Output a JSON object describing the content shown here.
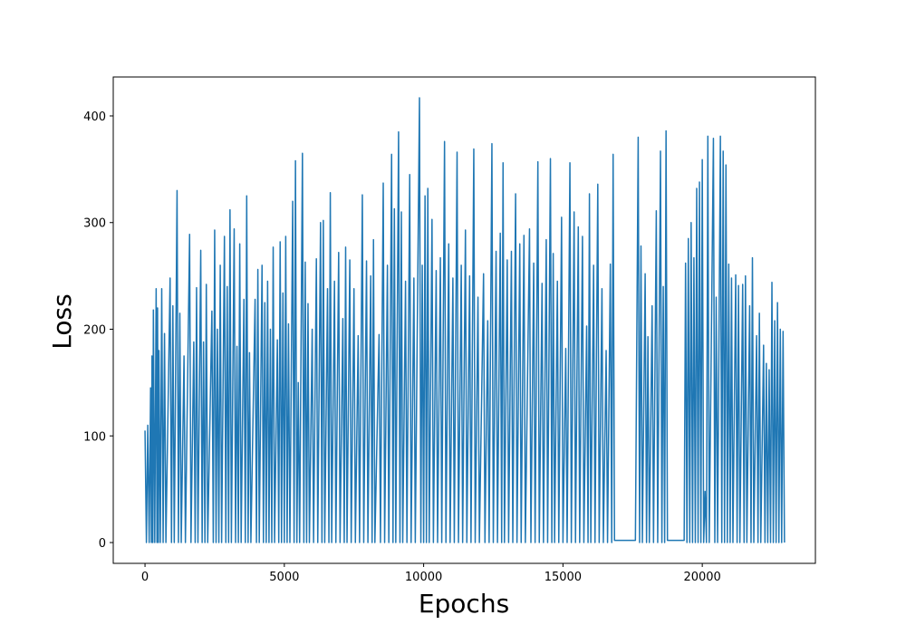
{
  "chart_data": {
    "type": "line",
    "xlabel": "Epochs",
    "ylabel": "Loss",
    "x": [
      0,
      50,
      100,
      150,
      200,
      230,
      250,
      280,
      300,
      350,
      400,
      430,
      450,
      480,
      500,
      550,
      600,
      650,
      700,
      750,
      900,
      950,
      1000,
      1050,
      1150,
      1200,
      1250,
      1300,
      1400,
      1450,
      1600,
      1650,
      1750,
      1800,
      1850,
      1900,
      2000,
      2050,
      2100,
      2150,
      2200,
      2250,
      2400,
      2450,
      2500,
      2550,
      2600,
      2650,
      2700,
      2750,
      2850,
      2900,
      2950,
      3000,
      3050,
      3100,
      3200,
      3250,
      3300,
      3350,
      3400,
      3450,
      3550,
      3600,
      3650,
      3700,
      3750,
      3800,
      3950,
      4000,
      4050,
      4100,
      4200,
      4250,
      4300,
      4350,
      4400,
      4450,
      4500,
      4550,
      4600,
      4650,
      4750,
      4800,
      4850,
      4900,
      4950,
      5000,
      5050,
      5100,
      5150,
      5200,
      5300,
      5350,
      5400,
      5450,
      5500,
      5550,
      5650,
      5700,
      5750,
      5800,
      5850,
      5900,
      6000,
      6050,
      6150,
      6200,
      6300,
      6350,
      6400,
      6450,
      6550,
      6600,
      6650,
      6700,
      6800,
      6850,
      6950,
      7000,
      7100,
      7150,
      7200,
      7250,
      7350,
      7400,
      7500,
      7550,
      7650,
      7700,
      7800,
      7850,
      7950,
      8000,
      8100,
      8150,
      8200,
      8250,
      8400,
      8450,
      8550,
      8600,
      8700,
      8750,
      8850,
      8900,
      8950,
      9000,
      9100,
      9150,
      9200,
      9250,
      9350,
      9400,
      9500,
      9550,
      9650,
      9700,
      9850,
      9900,
      9950,
      10000,
      10050,
      10100,
      10150,
      10200,
      10300,
      10350,
      10450,
      10500,
      10600,
      10650,
      10750,
      10800,
      10900,
      10950,
      11050,
      11100,
      11200,
      11250,
      11350,
      11400,
      11500,
      11550,
      11650,
      11700,
      11800,
      11850,
      11950,
      12000,
      12150,
      12200,
      12300,
      12350,
      12450,
      12500,
      12600,
      12650,
      12750,
      12800,
      12850,
      12900,
      13000,
      13050,
      13150,
      13200,
      13300,
      13350,
      13450,
      13500,
      13600,
      13650,
      13800,
      13850,
      13950,
      14000,
      14100,
      14150,
      14250,
      14300,
      14400,
      14450,
      14550,
      14600,
      14650,
      14700,
      14800,
      14850,
      14950,
      15000,
      15100,
      15150,
      15250,
      15300,
      15400,
      15450,
      15550,
      15600,
      15700,
      15750,
      15850,
      15900,
      15950,
      16000,
      16100,
      16150,
      16250,
      16300,
      16400,
      16450,
      16550,
      16600,
      16700,
      16750,
      16800,
      16850,
      17000,
      17200,
      17400,
      17600,
      17700,
      17750,
      17800,
      17850,
      17950,
      18000,
      18050,
      18100,
      18200,
      18250,
      18350,
      18400,
      18500,
      18550,
      18600,
      18650,
      18700,
      18750,
      18800,
      19000,
      19200,
      19350,
      19400,
      19450,
      19500,
      19550,
      19600,
      19650,
      19700,
      19750,
      19800,
      19850,
      19900,
      19950,
      20000,
      20050,
      20100,
      20150,
      20200,
      20250,
      20400,
      20450,
      20500,
      20550,
      20650,
      20700,
      20750,
      20800,
      20850,
      20900,
      20950,
      21000,
      21050,
      21100,
      21200,
      21250,
      21300,
      21350,
      21450,
      21500,
      21550,
      21600,
      21700,
      21750,
      21800,
      21850,
      21950,
      22000,
      22050,
      22100,
      22200,
      22250,
      22300,
      22350,
      22400,
      22450,
      22500,
      22550,
      22600,
      22650,
      22700,
      22750,
      22800,
      22850,
      22900,
      22950
    ],
    "series": [
      {
        "color": "#1f77b4",
        "values": [
          105,
          0,
          110,
          0,
          145,
          0,
          175,
          0,
          218,
          0,
          238,
          0,
          220,
          0,
          180,
          0,
          238,
          0,
          196,
          0,
          248,
          0,
          222,
          0,
          330,
          0,
          215,
          0,
          175,
          0,
          289,
          0,
          188,
          0,
          239,
          0,
          274,
          0,
          188,
          0,
          242,
          0,
          217,
          0,
          293,
          0,
          200,
          0,
          260,
          0,
          287,
          0,
          240,
          0,
          312,
          0,
          294,
          0,
          184,
          0,
          280,
          0,
          228,
          0,
          325,
          0,
          178,
          0,
          228,
          0,
          256,
          0,
          260,
          0,
          225,
          0,
          245,
          0,
          200,
          0,
          277,
          0,
          190,
          0,
          282,
          0,
          234,
          0,
          287,
          0,
          205,
          0,
          320,
          0,
          358,
          0,
          150,
          0,
          365,
          0,
          263,
          0,
          224,
          0,
          200,
          0,
          266,
          0,
          300,
          0,
          302,
          0,
          238,
          0,
          328,
          0,
          245,
          0,
          272,
          0,
          210,
          0,
          277,
          0,
          265,
          0,
          238,
          0,
          194,
          0,
          326,
          0,
          264,
          0,
          250,
          0,
          284,
          0,
          195,
          0,
          337,
          0,
          260,
          0,
          364,
          0,
          313,
          0,
          385,
          0,
          310,
          0,
          245,
          0,
          345,
          0,
          248,
          0,
          417,
          0,
          260,
          0,
          325,
          0,
          332,
          0,
          303,
          0,
          255,
          0,
          267,
          0,
          376,
          0,
          280,
          0,
          248,
          0,
          366,
          0,
          260,
          0,
          293,
          0,
          250,
          0,
          369,
          0,
          230,
          0,
          252,
          0,
          208,
          0,
          374,
          0,
          273,
          0,
          290,
          0,
          356,
          0,
          265,
          0,
          273,
          0,
          327,
          0,
          280,
          0,
          288,
          0,
          294,
          0,
          262,
          0,
          357,
          0,
          243,
          0,
          284,
          0,
          360,
          0,
          271,
          0,
          245,
          0,
          305,
          0,
          182,
          0,
          356,
          0,
          310,
          0,
          296,
          0,
          287,
          0,
          203,
          0,
          327,
          0,
          260,
          0,
          336,
          0,
          238,
          0,
          180,
          0,
          261,
          0,
          364,
          2,
          2,
          2,
          2,
          2,
          380,
          0,
          278,
          0,
          252,
          0,
          193,
          0,
          222,
          0,
          311,
          0,
          367,
          0,
          240,
          0,
          386,
          2,
          2,
          2,
          2,
          2,
          262,
          0,
          285,
          0,
          300,
          0,
          267,
          0,
          332,
          0,
          338,
          0,
          359,
          0,
          48,
          0,
          381,
          0,
          379,
          0,
          230,
          0,
          381,
          0,
          367,
          0,
          354,
          0,
          261,
          0,
          248,
          0,
          251,
          0,
          241,
          0,
          242,
          0,
          250,
          0,
          222,
          0,
          267,
          0,
          194,
          0,
          215,
          0,
          185,
          0,
          168,
          0,
          162,
          0,
          244,
          0,
          208,
          0,
          225,
          0,
          200,
          0,
          198,
          0
        ]
      }
    ],
    "xlim": [
      -1140,
      24060
    ],
    "xticks": [
      0,
      5000,
      10000,
      15000,
      20000
    ],
    "ylim": [
      -19.5,
      436.5
    ],
    "yticks": [
      0,
      100,
      200,
      300,
      400
    ],
    "grid": false
  }
}
